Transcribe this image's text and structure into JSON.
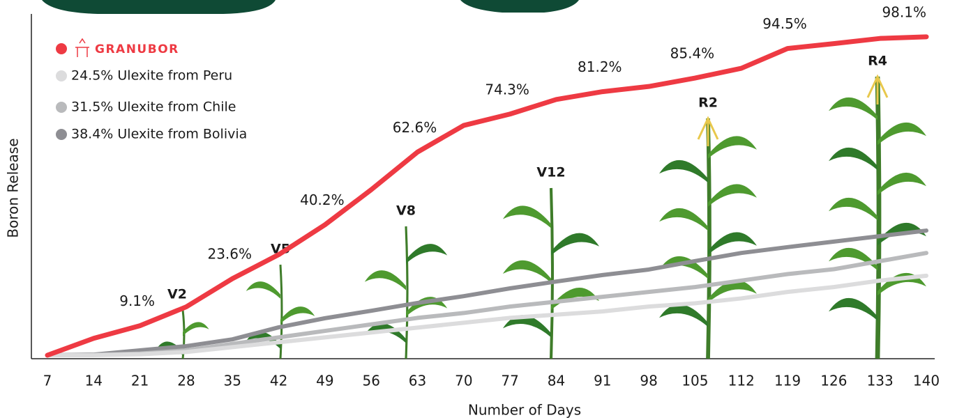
{
  "chart_data": {
    "type": "line",
    "x_label": "Number of Days",
    "y_label": "Boron Release",
    "categories": [
      "7",
      "14",
      "21",
      "28",
      "35",
      "42",
      "49",
      "56",
      "63",
      "70",
      "77",
      "84",
      "91",
      "98",
      "105",
      "112",
      "119",
      "126",
      "133",
      "140"
    ],
    "ylim": [
      0,
      100
    ],
    "grid": false,
    "legend_position": "upper-left",
    "series": [
      {
        "name": "GRANUBOR",
        "color": "#ee3a43",
        "values": [
          0,
          5.2,
          9.1,
          14.9,
          23.6,
          31,
          40.2,
          51,
          62.6,
          70.8,
          74.3,
          78.8,
          81.2,
          82.8,
          85.4,
          88.4,
          94.5,
          96,
          97.6,
          98.1
        ],
        "value_labels": [
          null,
          null,
          "9.1%",
          null,
          "23.6%",
          null,
          "40.2%",
          null,
          "62.6%",
          null,
          "74.3%",
          null,
          "81.2%",
          null,
          "85.4%",
          null,
          "94.5%",
          null,
          null,
          "98.1%"
        ]
      },
      {
        "name": "24.5% Ulexite from Peru",
        "color": "#dcdcdd",
        "values": [
          0,
          0,
          0.3,
          1,
          2.5,
          4,
          5.5,
          7,
          8.5,
          10,
          11.5,
          12.5,
          13.5,
          15,
          16,
          17.5,
          19.5,
          21,
          23,
          24.5
        ]
      },
      {
        "name": "31.5% Ulexite from Chile",
        "color": "#b9babc",
        "values": [
          0,
          0.1,
          0.5,
          1.5,
          3.5,
          5.5,
          7.5,
          9.5,
          11.5,
          13,
          15,
          16.5,
          18,
          19.5,
          21,
          23,
          25,
          26.5,
          29,
          31.5
        ]
      },
      {
        "name": "38.4% Ulexite from Bolivia",
        "color": "#8e8e93",
        "values": [
          0,
          0.2,
          1.5,
          2.8,
          4.9,
          8.6,
          11.4,
          13.7,
          16.1,
          18.2,
          20.6,
          22.7,
          24.7,
          26.4,
          29,
          31.5,
          33.3,
          35,
          36.7,
          38.4
        ]
      }
    ],
    "annotations": [
      "V2",
      "V5",
      "V8",
      "V12",
      "R2",
      "R4"
    ]
  }
}
